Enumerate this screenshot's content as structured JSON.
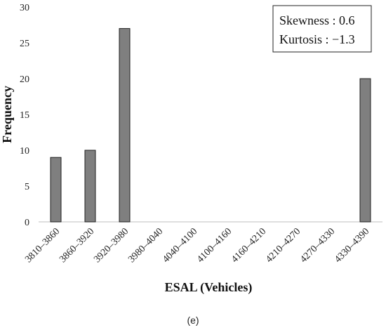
{
  "chart_data": {
    "type": "bar",
    "categories": [
      "3810–3860",
      "3860–3920",
      "3920–3980",
      "3980–4040",
      "4040–4100",
      "4100–4160",
      "4160–4210",
      "4210–4270",
      "4270–4330",
      "4330–4390"
    ],
    "values": [
      9,
      10,
      27,
      0,
      0,
      0,
      0,
      0,
      0,
      20
    ],
    "xlabel": "ESAL (Vehicles)",
    "ylabel": "Frequency",
    "ylim": [
      0,
      30
    ],
    "yticks": [
      0,
      5,
      10,
      15,
      20,
      25,
      30
    ],
    "grid": false,
    "bar_color": "#7f7f7f",
    "annotations": [
      "Skewness : 0.6",
      "Kurtosis : −1.3"
    ],
    "annotation_placement": "top-right"
  },
  "caption": "(e)"
}
